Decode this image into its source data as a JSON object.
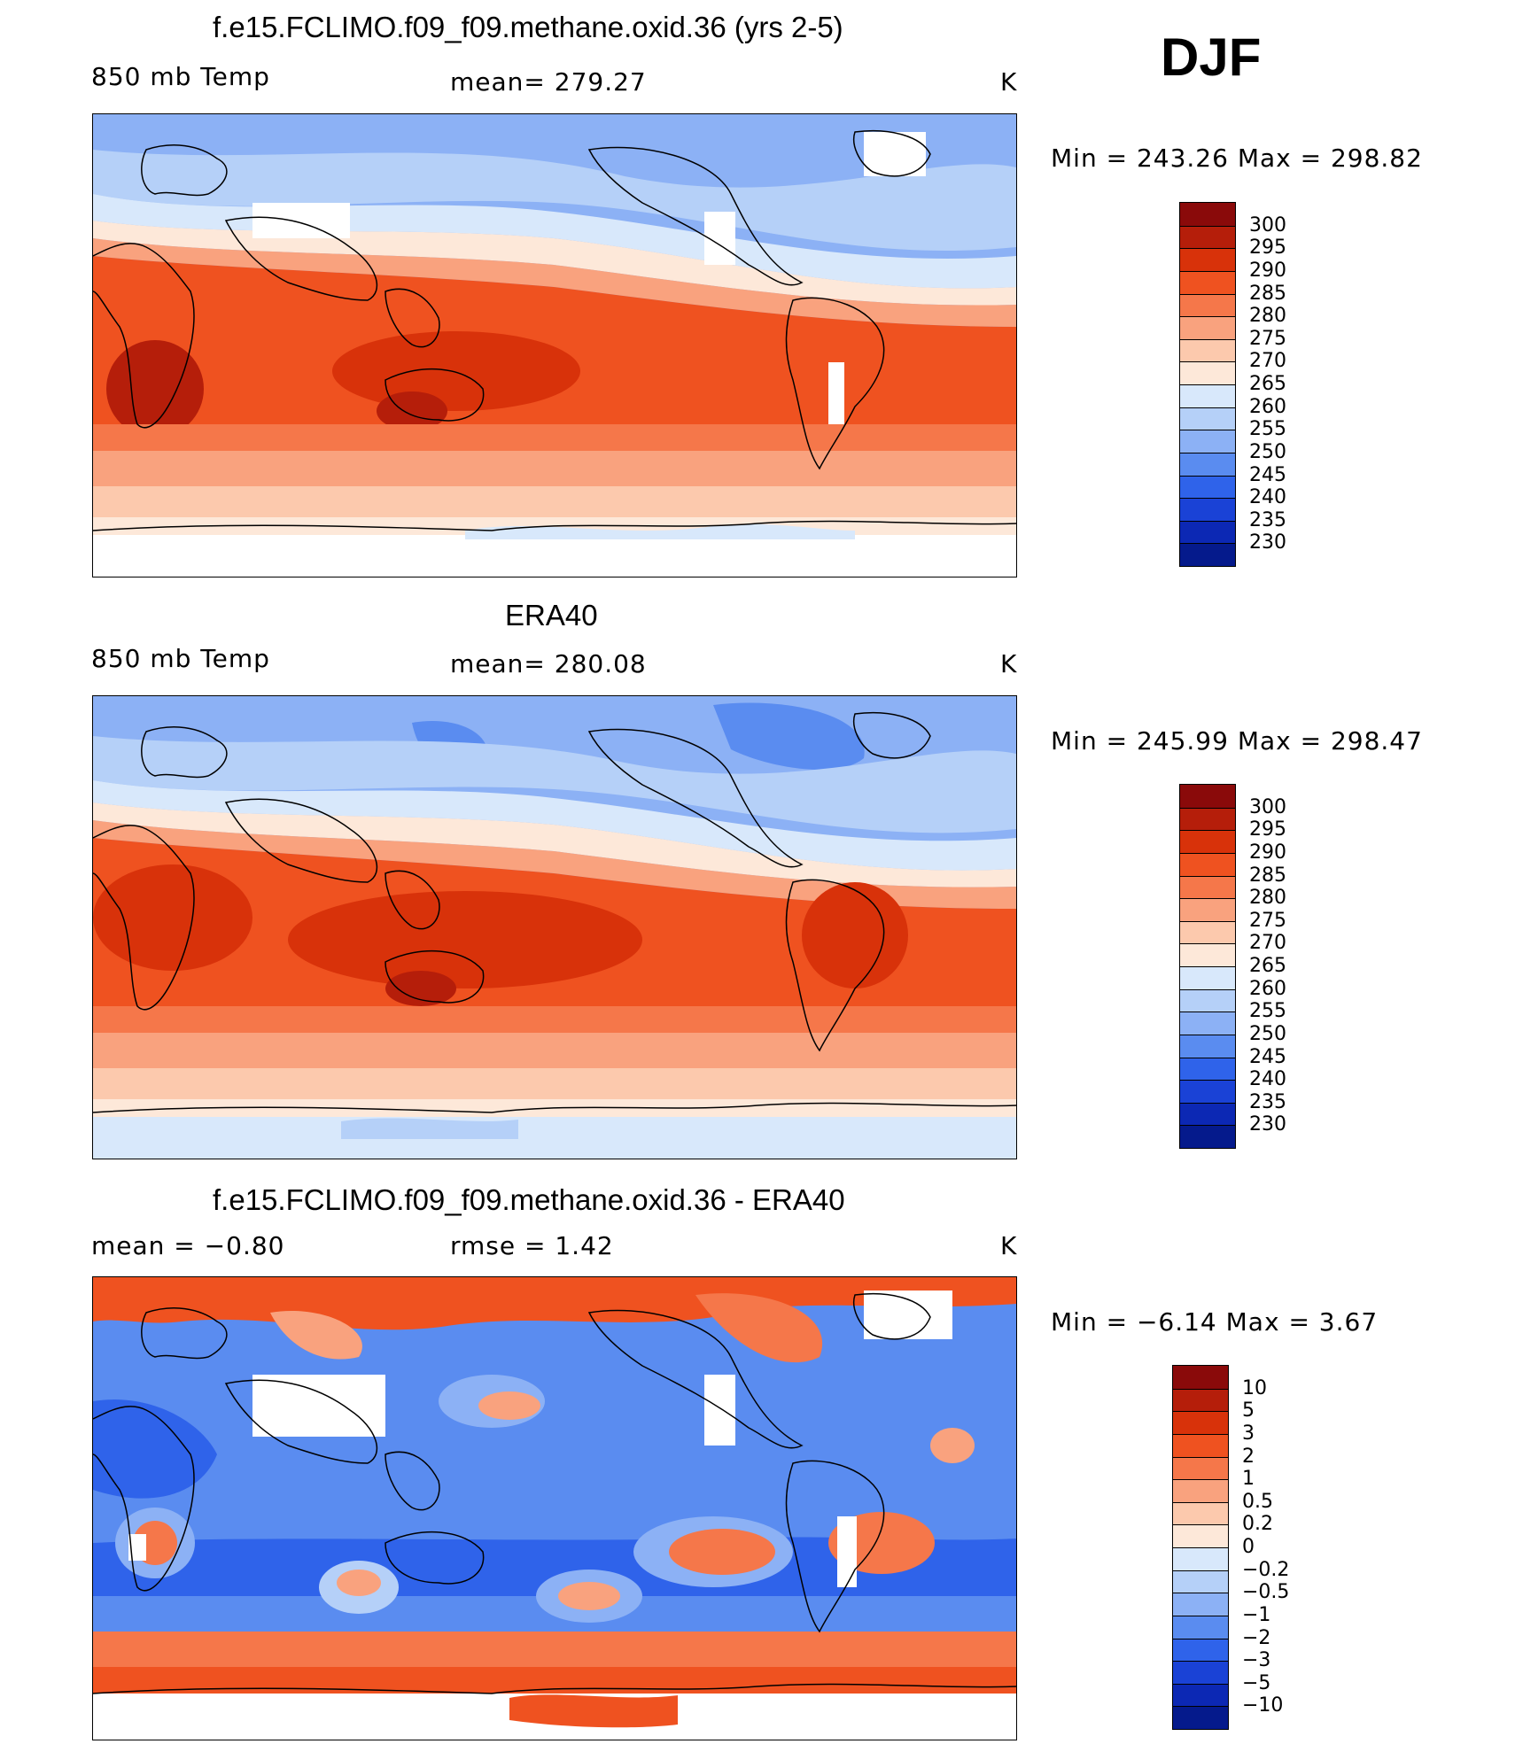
{
  "season": "DJF",
  "panels": [
    {
      "id": "model",
      "title": "f.e15.FCLIMO.f09_f09.methane.oxid.36 (yrs 2-5)",
      "left_label": "850 mb Temp",
      "center_label": "mean=  279.27",
      "units": "K",
      "range_text": "Min  =  243.26  Max  =  298.82",
      "colorbar": {
        "labels": [
          "300",
          "295",
          "290",
          "285",
          "280",
          "275",
          "270",
          "265",
          "260",
          "255",
          "250",
          "245",
          "240",
          "235",
          "230"
        ],
        "colors": [
          "#8a0a0a",
          "#b51e0a",
          "#d8320a",
          "#ef5220",
          "#f5774a",
          "#f9a27e",
          "#fcc9ad",
          "#fde8d9",
          "#d8e8fb",
          "#b5d0f8",
          "#8cb1f5",
          "#5a8cf0",
          "#2f63ea",
          "#1a42d6",
          "#0c28b4",
          "#051a8c"
        ]
      },
      "map_legend_values": {
        "ocean_tropics": "290-295",
        "midlat": "275-285",
        "polar": "245-260"
      }
    },
    {
      "id": "obs",
      "title": "ERA40",
      "left_label": "850 mb Temp",
      "center_label": "mean=  280.08",
      "units": "K",
      "range_text": "Min  =  245.99  Max  =  298.47",
      "colorbar": {
        "labels": [
          "300",
          "295",
          "290",
          "285",
          "280",
          "275",
          "270",
          "265",
          "260",
          "255",
          "250",
          "245",
          "240",
          "235",
          "230"
        ],
        "colors": [
          "#8a0a0a",
          "#b51e0a",
          "#d8320a",
          "#ef5220",
          "#f5774a",
          "#f9a27e",
          "#fcc9ad",
          "#fde8d9",
          "#d8e8fb",
          "#b5d0f8",
          "#8cb1f5",
          "#5a8cf0",
          "#2f63ea",
          "#1a42d6",
          "#0c28b4",
          "#051a8c"
        ]
      }
    },
    {
      "id": "diff",
      "title": "f.e15.FCLIMO.f09_f09.methane.oxid.36 - ERA40",
      "left_label": "mean =     −0.80",
      "center_label": "rmse  =      1.42",
      "units": "K",
      "range_text": "Min  =    −6.14  Max  =      3.67",
      "colorbar": {
        "labels": [
          "10",
          "5",
          "3",
          "2",
          "1",
          "0.5",
          "0.2",
          "0",
          "−0.2",
          "−0.5",
          "−1",
          "−2",
          "−3",
          "−5",
          "−10"
        ],
        "colors": [
          "#8a0a0a",
          "#b51e0a",
          "#d8320a",
          "#ef5220",
          "#f5774a",
          "#f9a27e",
          "#fcc9ad",
          "#fde8d9",
          "#d8e8fb",
          "#b5d0f8",
          "#8cb1f5",
          "#5a8cf0",
          "#2f63ea",
          "#1a42d6",
          "#0c28b4",
          "#051a8c"
        ]
      }
    }
  ]
}
